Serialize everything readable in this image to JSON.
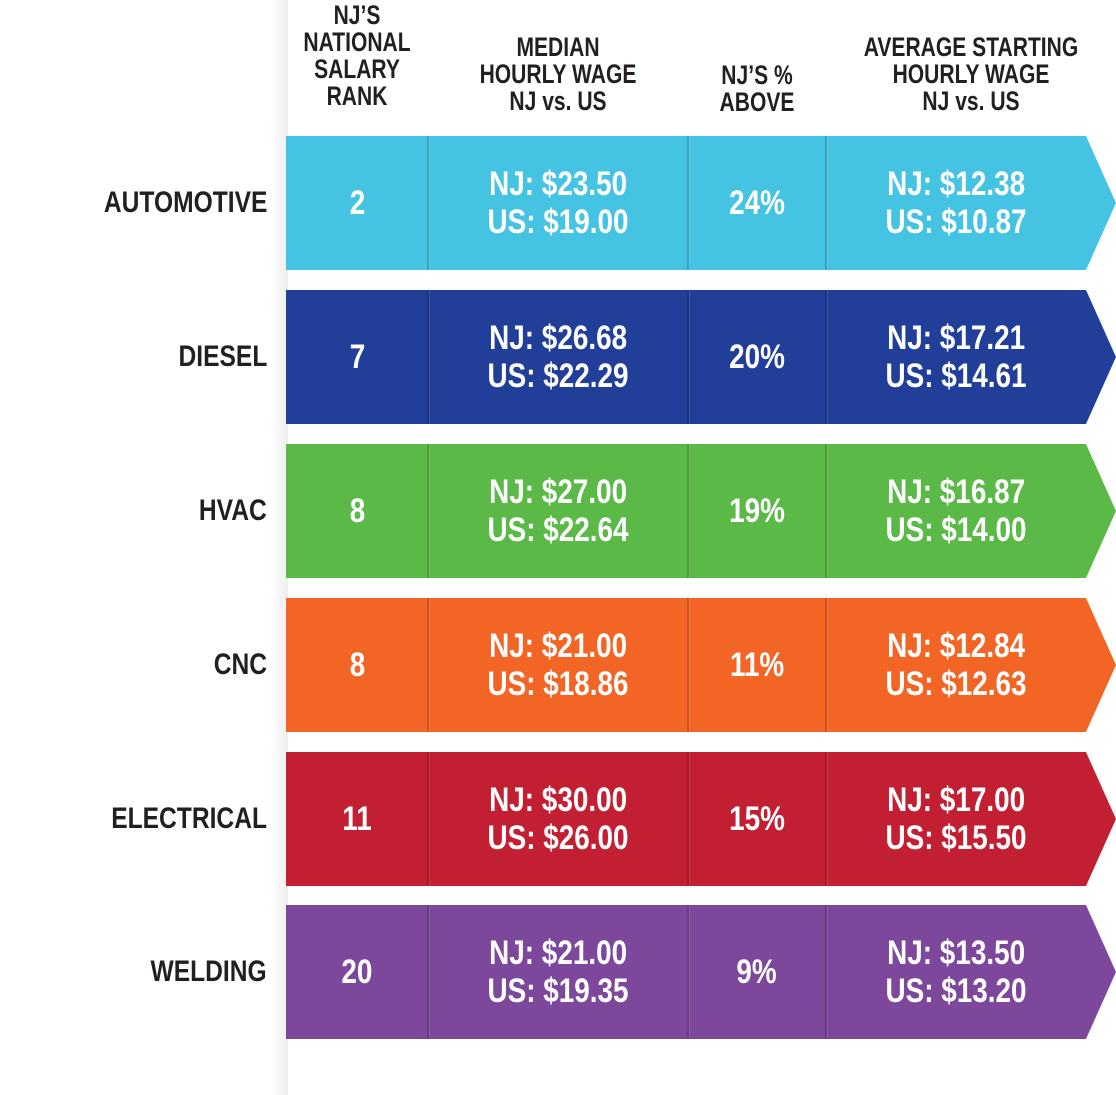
{
  "header": {
    "rank_lines": [
      "NJ’S",
      "NATIONAL",
      "SALARY",
      "RANK"
    ],
    "median_lines": [
      "MEDIAN",
      "HOURLY WAGE",
      "NJ vs. US"
    ],
    "pct_lines": [
      "NJ’S %",
      "ABOVE"
    ],
    "start_lines": [
      "AVERAGE STARTING",
      "HOURLY WAGE",
      "NJ vs. US"
    ]
  },
  "chart_data": {
    "type": "table",
    "columns": [
      "NJ’S NATIONAL SALARY RANK",
      "MEDIAN HOURLY WAGE NJ vs. US",
      "NJ’S % ABOVE",
      "AVERAGE STARTING HOURLY WAGE NJ vs. US"
    ],
    "rows": [
      {
        "category": "AUTOMOTIVE",
        "rank": "2",
        "median_nj": "NJ:  $23.50",
        "median_us": "US: $19.00",
        "pct": "24%",
        "start_nj": "NJ:  $12.38",
        "start_us": "US: $10.87",
        "color": "#45c3e2"
      },
      {
        "category": "DIESEL",
        "rank": "7",
        "median_nj": "NJ:  $26.68",
        "median_us": "US: $22.29",
        "pct": "20%",
        "start_nj": "NJ:  $17.21",
        "start_us": "US: $14.61",
        "color": "#213f98"
      },
      {
        "category": "HVAC",
        "rank": "8",
        "median_nj": "NJ:  $27.00",
        "median_us": "US: $22.64",
        "pct": "19%",
        "start_nj": "NJ:  $16.87",
        "start_us": "US: $14.00",
        "color": "#5bb947"
      },
      {
        "category": "CNC",
        "rank": "8",
        "median_nj": "NJ:  $21.00",
        "median_us": "US: $18.86",
        "pct": "11%",
        "start_nj": "NJ:  $12.84",
        "start_us": "US: $12.63",
        "color": "#f26524"
      },
      {
        "category": "ELECTRICAL",
        "rank": "11",
        "median_nj": "NJ:  $30.00",
        "median_us": "US: $26.00",
        "pct": "15%",
        "start_nj": "NJ:  $17.00",
        "start_us": "US: $15.50",
        "color": "#c21f32"
      },
      {
        "category": "WELDING",
        "rank": "20",
        "median_nj": "NJ:  $21.00",
        "median_us": "US: $19.35",
        "pct": "9%",
        "start_nj": "NJ:  $13.50",
        "start_us": "US: $13.20",
        "color": "#7d489c"
      }
    ]
  }
}
